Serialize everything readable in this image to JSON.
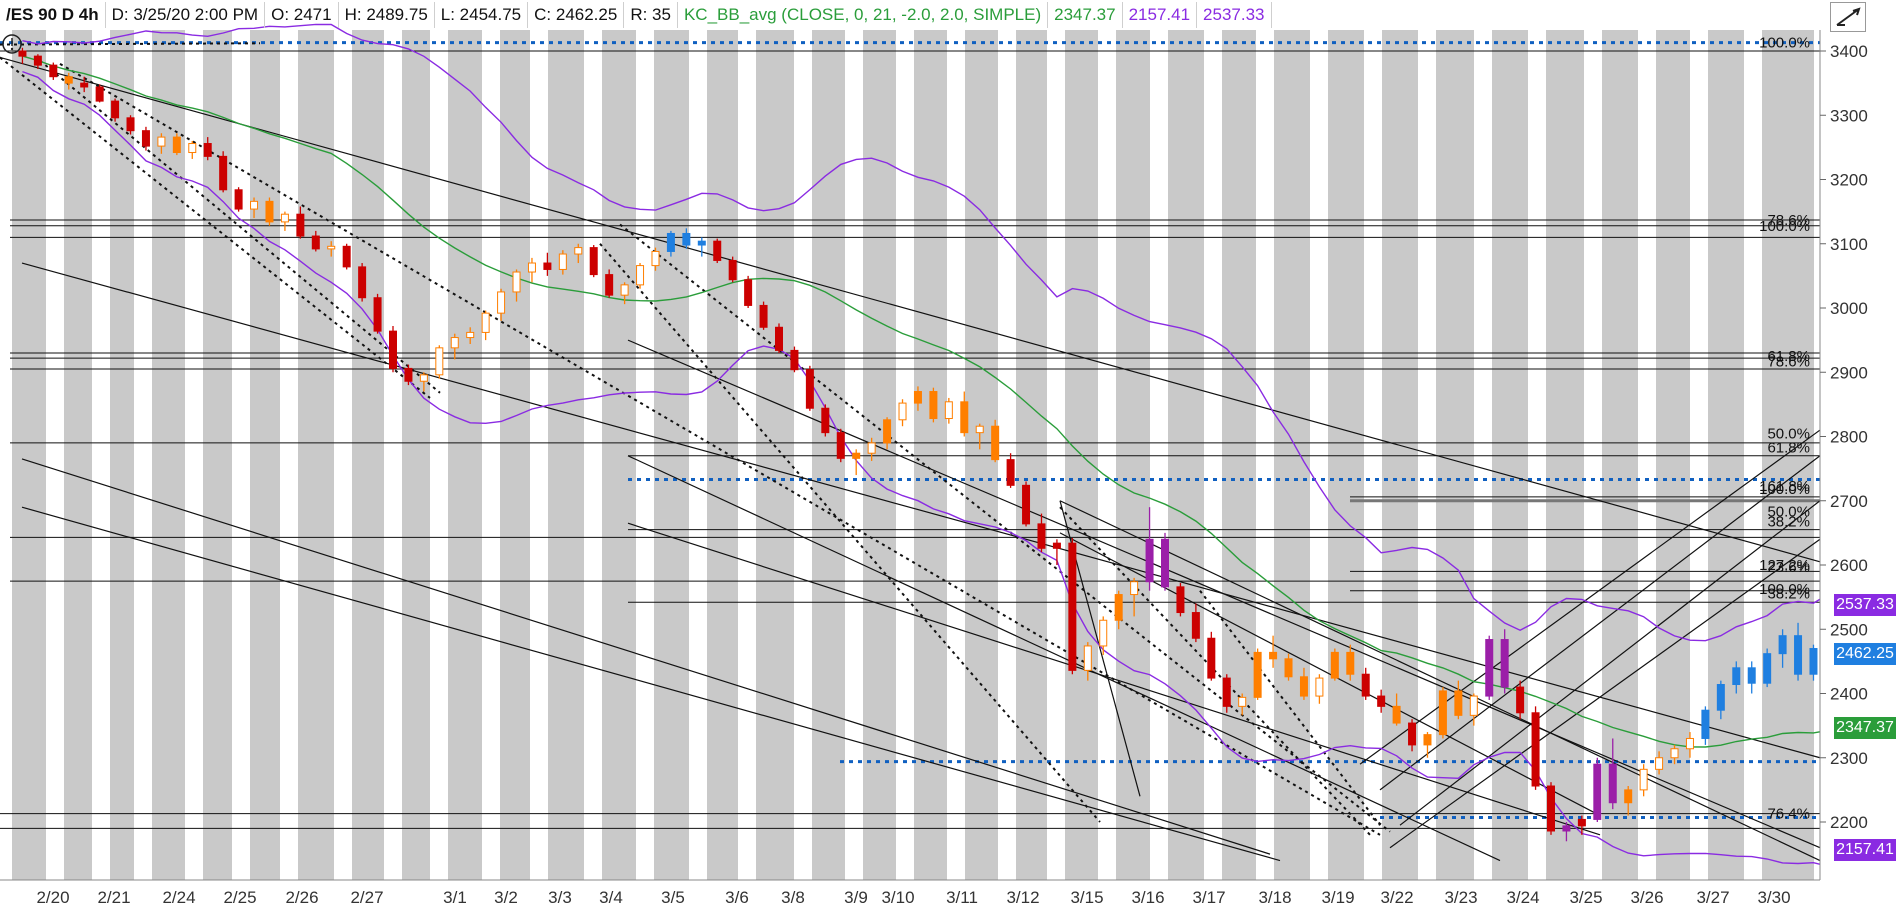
{
  "header": {
    "symbol": "/ES 90 D 4h",
    "date": "D: 3/25/20 2:00 PM",
    "open": "O: 2471",
    "high": "H: 2489.75",
    "low": "L: 2454.75",
    "close": "C: 2462.25",
    "range": "R: 35",
    "study": "KC_BB_avg (CLOSE, 0, 21, -2.0, 2.0, SIMPLE)",
    "study_mid": "2347.37",
    "study_lower": "2157.41",
    "study_upper": "2537.33"
  },
  "colors": {
    "down": "#cc0000",
    "down_light": "#ff7f00",
    "up_purple": "#9b1fa8",
    "up_blue": "#1f7fe0",
    "up_green": "#2a9d3a",
    "band_purple": "#8a2be2",
    "mid_green": "#2a9d3a",
    "dotted_blue": "#1060c0"
  },
  "price_axis": {
    "ticks": [
      "3400",
      "3300",
      "3200",
      "3100",
      "3000",
      "2900",
      "2800",
      "2700",
      "2600",
      "2500",
      "2400",
      "2300",
      "2200"
    ]
  },
  "time_axis": {
    "labels": [
      "2/20",
      "2/21",
      "2/24",
      "2/25",
      "2/26",
      "2/27",
      "3/1",
      "3/2",
      "3/3",
      "3/4",
      "3/5",
      "3/6",
      "3/8",
      "3/9",
      "3/10",
      "3/11",
      "3/12",
      "3/15",
      "3/16",
      "3/17",
      "3/18",
      "3/19",
      "3/22",
      "3/23",
      "3/24",
      "3/25",
      "3/26",
      "3/27",
      "3/30"
    ]
  },
  "fib_labels": [
    {
      "text": "100.0%",
      "price": 3413
    },
    {
      "text": "78.6%",
      "price": 3137
    },
    {
      "text": "100.0%",
      "price": 3128
    },
    {
      "text": "61.8%",
      "price": 2925
    },
    {
      "text": "78.6%",
      "price": 2917
    },
    {
      "text": "50.0%",
      "price": 2805
    },
    {
      "text": "61.8%",
      "price": 2783
    },
    {
      "text": "161.8%",
      "price": 2723
    },
    {
      "text": "100.0%",
      "price": 2718
    },
    {
      "text": "50.0%",
      "price": 2683
    },
    {
      "text": "38.2%",
      "price": 2668
    },
    {
      "text": "127.2%",
      "price": 2600
    },
    {
      "text": "23.6%",
      "price": 2597
    },
    {
      "text": "100.0%",
      "price": 2563
    },
    {
      "text": "38.2%",
      "price": 2556
    },
    {
      "text": "76.4%",
      "price": 2213
    }
  ],
  "price_tags": [
    {
      "value": "2537.33",
      "color": "#8a2be2",
      "price": 2537
    },
    {
      "value": "2462.25",
      "color": "#1f7fe0",
      "price": 2462
    },
    {
      "value": "2347.37",
      "color": "#2a9d3a",
      "price": 2347
    },
    {
      "value": "2157.41",
      "color": "#8a2be2",
      "price": 2157
    }
  ],
  "hlines": [
    {
      "price": 3413,
      "style": "dotted",
      "color": "#1060c0",
      "x0": 0
    },
    {
      "price": 3400,
      "style": "solid",
      "color": "#111",
      "x0": 0
    },
    {
      "price": 3137,
      "style": "solid",
      "color": "#111",
      "x0": 10
    },
    {
      "price": 3128,
      "style": "solid",
      "color": "#111",
      "x0": 10
    },
    {
      "price": 3110,
      "style": "solid",
      "color": "#111",
      "x0": 10
    },
    {
      "price": 2930,
      "style": "solid",
      "color": "#111",
      "x0": 10
    },
    {
      "price": 2922,
      "style": "solid",
      "color": "#111",
      "x0": 10
    },
    {
      "price": 2905,
      "style": "solid",
      "color": "#111",
      "x0": 10
    },
    {
      "price": 2790,
      "style": "solid",
      "color": "#111",
      "x0": 10
    },
    {
      "price": 2770,
      "style": "solid",
      "color": "#111",
      "x0": 628
    },
    {
      "price": 2733,
      "style": "dotted",
      "color": "#1060c0",
      "x0": 628
    },
    {
      "price": 2700,
      "style": "thick",
      "color": "#777",
      "x0": 1350
    },
    {
      "price": 2706,
      "style": "solid",
      "color": "#111",
      "x0": 1350
    },
    {
      "price": 2655,
      "style": "solid",
      "color": "#111",
      "x0": 628
    },
    {
      "price": 2643,
      "style": "solid",
      "color": "#111",
      "x0": 10
    },
    {
      "price": 2590,
      "style": "solid",
      "color": "#111",
      "x0": 1350
    },
    {
      "price": 2575,
      "style": "solid",
      "color": "#111",
      "x0": 10
    },
    {
      "price": 2560,
      "style": "solid",
      "color": "#111",
      "x0": 1350
    },
    {
      "price": 2542,
      "style": "solid",
      "color": "#111",
      "x0": 628
    },
    {
      "price": 2294,
      "style": "dotted",
      "color": "#1060c0",
      "x0": 840
    },
    {
      "price": 2213,
      "style": "solid",
      "color": "#111",
      "x0": 0
    },
    {
      "price": 2207,
      "style": "dotted",
      "color": "#1060c0",
      "x0": 1380
    },
    {
      "price": 2190,
      "style": "solid",
      "color": "#111",
      "x0": 0
    }
  ],
  "candles": [
    [
      2,
      3400,
      3405,
      3380,
      3392,
      "d"
    ],
    [
      4,
      3392,
      3395,
      3372,
      3378,
      "d"
    ],
    [
      6,
      3378,
      3382,
      3355,
      3360,
      "d"
    ],
    [
      8,
      3360,
      3366,
      3340,
      3350,
      "dl"
    ],
    [
      10,
      3350,
      3360,
      3336,
      3344,
      "d"
    ],
    [
      12,
      3344,
      3348,
      3320,
      3322,
      "d"
    ],
    [
      14,
      3322,
      3326,
      3290,
      3296,
      "d"
    ],
    [
      16,
      3296,
      3300,
      3270,
      3276,
      "d"
    ],
    [
      18,
      3276,
      3282,
      3245,
      3252,
      "d"
    ],
    [
      20,
      3252,
      3272,
      3240,
      3266,
      "u"
    ],
    [
      22,
      3266,
      3272,
      3238,
      3242,
      "dl"
    ],
    [
      24,
      3242,
      3260,
      3232,
      3256,
      "u"
    ],
    [
      26,
      3256,
      3266,
      3230,
      3236,
      "d"
    ],
    [
      28,
      3236,
      3244,
      3180,
      3184,
      "d"
    ],
    [
      30,
      3184,
      3188,
      3150,
      3154,
      "d"
    ],
    [
      32,
      3154,
      3172,
      3140,
      3166,
      "u"
    ],
    [
      34,
      3166,
      3172,
      3128,
      3134,
      "dl"
    ],
    [
      36,
      3134,
      3150,
      3120,
      3146,
      "u"
    ],
    [
      38,
      3146,
      3158,
      3108,
      3112,
      "d"
    ],
    [
      40,
      3112,
      3120,
      3088,
      3092,
      "d"
    ],
    [
      42,
      3092,
      3104,
      3080,
      3096,
      "u"
    ],
    [
      44,
      3096,
      3100,
      3060,
      3064,
      "d"
    ],
    [
      46,
      3064,
      3070,
      3010,
      3016,
      "d"
    ],
    [
      48,
      3016,
      3022,
      2960,
      2964,
      "d"
    ],
    [
      50,
      2964,
      2972,
      2900,
      2906,
      "d"
    ],
    [
      52,
      2906,
      2912,
      2880,
      2886,
      "d"
    ],
    [
      54,
      2886,
      2900,
      2870,
      2896,
      "u"
    ],
    [
      56,
      2896,
      2942,
      2890,
      2938,
      "u"
    ],
    [
      58,
      2938,
      2960,
      2920,
      2954,
      "u"
    ],
    [
      60,
      2954,
      2970,
      2944,
      2962,
      "u"
    ],
    [
      62,
      2962,
      2996,
      2950,
      2992,
      "u"
    ],
    [
      64,
      2992,
      3030,
      2980,
      3025,
      "u"
    ],
    [
      66,
      3025,
      3060,
      3010,
      3056,
      "u"
    ],
    [
      68,
      3056,
      3078,
      3040,
      3070,
      "u"
    ],
    [
      70,
      3070,
      3086,
      3050,
      3060,
      "d"
    ],
    [
      72,
      3060,
      3090,
      3052,
      3084,
      "u"
    ],
    [
      74,
      3084,
      3100,
      3070,
      3094,
      "u"
    ],
    [
      76,
      3094,
      3098,
      3048,
      3052,
      "d"
    ],
    [
      78,
      3052,
      3060,
      3016,
      3020,
      "d"
    ],
    [
      80,
      3020,
      3040,
      3006,
      3036,
      "u"
    ],
    [
      82,
      3036,
      3070,
      3030,
      3066,
      "u"
    ],
    [
      84,
      3066,
      3094,
      3058,
      3088,
      "u"
    ],
    [
      86,
      3088,
      3120,
      3080,
      3116,
      "ub"
    ],
    [
      88,
      3116,
      3124,
      3092,
      3098,
      "ub"
    ],
    [
      90,
      3098,
      3110,
      3080,
      3104,
      "ub"
    ],
    [
      92,
      3104,
      3108,
      3070,
      3074,
      "d"
    ],
    [
      94,
      3074,
      3080,
      3040,
      3044,
      "d"
    ],
    [
      96,
      3044,
      3050,
      3000,
      3004,
      "d"
    ],
    [
      98,
      3004,
      3010,
      2966,
      2970,
      "d"
    ],
    [
      100,
      2970,
      2976,
      2930,
      2934,
      "d"
    ],
    [
      102,
      2934,
      2940,
      2900,
      2904,
      "d"
    ],
    [
      104,
      2904,
      2910,
      2840,
      2844,
      "d"
    ],
    [
      106,
      2844,
      2850,
      2800,
      2806,
      "d"
    ],
    [
      108,
      2806,
      2812,
      2760,
      2766,
      "d"
    ],
    [
      110,
      2766,
      2780,
      2740,
      2774,
      "dl"
    ],
    [
      112,
      2774,
      2798,
      2762,
      2790,
      "u"
    ],
    [
      114,
      2790,
      2830,
      2780,
      2826,
      "dl"
    ],
    [
      116,
      2826,
      2858,
      2816,
      2852,
      "u"
    ],
    [
      118,
      2852,
      2878,
      2840,
      2870,
      "dl"
    ],
    [
      120,
      2870,
      2876,
      2822,
      2828,
      "dl"
    ],
    [
      122,
      2828,
      2860,
      2820,
      2854,
      "u"
    ],
    [
      124,
      2854,
      2870,
      2800,
      2806,
      "dl"
    ],
    [
      126,
      2806,
      2820,
      2780,
      2816,
      "u"
    ],
    [
      128,
      2816,
      2826,
      2760,
      2764,
      "dl"
    ],
    [
      130,
      2764,
      2774,
      2720,
      2724,
      "d"
    ],
    [
      132,
      2724,
      2730,
      2660,
      2664,
      "d"
    ],
    [
      134,
      2664,
      2680,
      2620,
      2626,
      "d"
    ],
    [
      136,
      2626,
      2640,
      2600,
      2634,
      "d"
    ],
    [
      138,
      2634,
      2642,
      2430,
      2436,
      "d"
    ],
    [
      140,
      2436,
      2480,
      2420,
      2474,
      "u"
    ],
    [
      142,
      2474,
      2520,
      2460,
      2514,
      "u"
    ],
    [
      144,
      2514,
      2560,
      2500,
      2554,
      "dl"
    ],
    [
      146,
      2554,
      2580,
      2520,
      2574,
      "u"
    ],
    [
      148,
      2574,
      2690,
      2560,
      2640,
      "up"
    ],
    [
      150,
      2640,
      2650,
      2560,
      2566,
      "up"
    ],
    [
      152,
      2566,
      2572,
      2520,
      2526,
      "d"
    ],
    [
      154,
      2526,
      2540,
      2480,
      2486,
      "d"
    ],
    [
      156,
      2486,
      2496,
      2420,
      2424,
      "d"
    ],
    [
      158,
      2424,
      2430,
      2370,
      2380,
      "d"
    ],
    [
      160,
      2380,
      2400,
      2366,
      2394,
      "u"
    ],
    [
      162,
      2394,
      2470,
      2390,
      2464,
      "dl"
    ],
    [
      164,
      2464,
      2490,
      2440,
      2454,
      "dl"
    ],
    [
      166,
      2454,
      2462,
      2420,
      2426,
      "dl"
    ],
    [
      168,
      2426,
      2440,
      2390,
      2396,
      "dl"
    ],
    [
      170,
      2396,
      2430,
      2384,
      2424,
      "u"
    ],
    [
      172,
      2424,
      2470,
      2420,
      2464,
      "dl"
    ],
    [
      174,
      2464,
      2476,
      2420,
      2430,
      "dl"
    ],
    [
      176,
      2430,
      2440,
      2390,
      2396,
      "d"
    ],
    [
      178,
      2396,
      2406,
      2370,
      2380,
      "d"
    ],
    [
      180,
      2380,
      2400,
      2350,
      2354,
      "dl"
    ],
    [
      182,
      2354,
      2360,
      2310,
      2320,
      "d"
    ],
    [
      184,
      2320,
      2340,
      2300,
      2336,
      "dl"
    ],
    [
      186,
      2336,
      2410,
      2330,
      2404,
      "dl"
    ],
    [
      188,
      2404,
      2420,
      2360,
      2366,
      "dl"
    ],
    [
      190,
      2366,
      2400,
      2350,
      2396,
      "u"
    ],
    [
      192,
      2396,
      2490,
      2390,
      2484,
      "up"
    ],
    [
      194,
      2484,
      2500,
      2400,
      2410,
      "up"
    ],
    [
      196,
      2410,
      2420,
      2360,
      2370,
      "d"
    ],
    [
      198,
      2370,
      2380,
      2250,
      2256,
      "d"
    ],
    [
      200,
      2256,
      2262,
      2180,
      2186,
      "d"
    ],
    [
      202,
      2186,
      2200,
      2170,
      2194,
      "up"
    ],
    [
      204,
      2194,
      2210,
      2180,
      2204,
      "d"
    ],
    [
      206,
      2204,
      2300,
      2200,
      2290,
      "up"
    ],
    [
      208,
      2290,
      2330,
      2220,
      2230,
      "up"
    ],
    [
      210,
      2230,
      2256,
      2210,
      2250,
      "dl"
    ],
    [
      212,
      2250,
      2290,
      2240,
      2282,
      "u"
    ],
    [
      214,
      2282,
      2310,
      2274,
      2300,
      "u"
    ],
    [
      216,
      2300,
      2320,
      2290,
      2314,
      "u"
    ],
    [
      218,
      2314,
      2340,
      2300,
      2330,
      "u"
    ],
    [
      220,
      2330,
      2380,
      2320,
      2374,
      "ub"
    ],
    [
      222,
      2374,
      2420,
      2360,
      2414,
      "ub"
    ],
    [
      224,
      2414,
      2450,
      2400,
      2440,
      "ub"
    ],
    [
      226,
      2440,
      2450,
      2400,
      2416,
      "ub"
    ],
    [
      228,
      2416,
      2470,
      2410,
      2462,
      "ub"
    ],
    [
      230,
      2462,
      2500,
      2440,
      2490,
      "ub"
    ],
    [
      232,
      2490,
      2510,
      2420,
      2430,
      "ub"
    ],
    [
      234,
      2430,
      2476,
      2420,
      2470,
      "ub"
    ],
    [
      236,
      2470,
      2510,
      2460,
      2500,
      "ug"
    ],
    [
      238,
      2500,
      2508,
      2456,
      2462,
      "ug"
    ],
    [
      240,
      2471,
      2490,
      2455,
      2462,
      "ub"
    ]
  ]
}
